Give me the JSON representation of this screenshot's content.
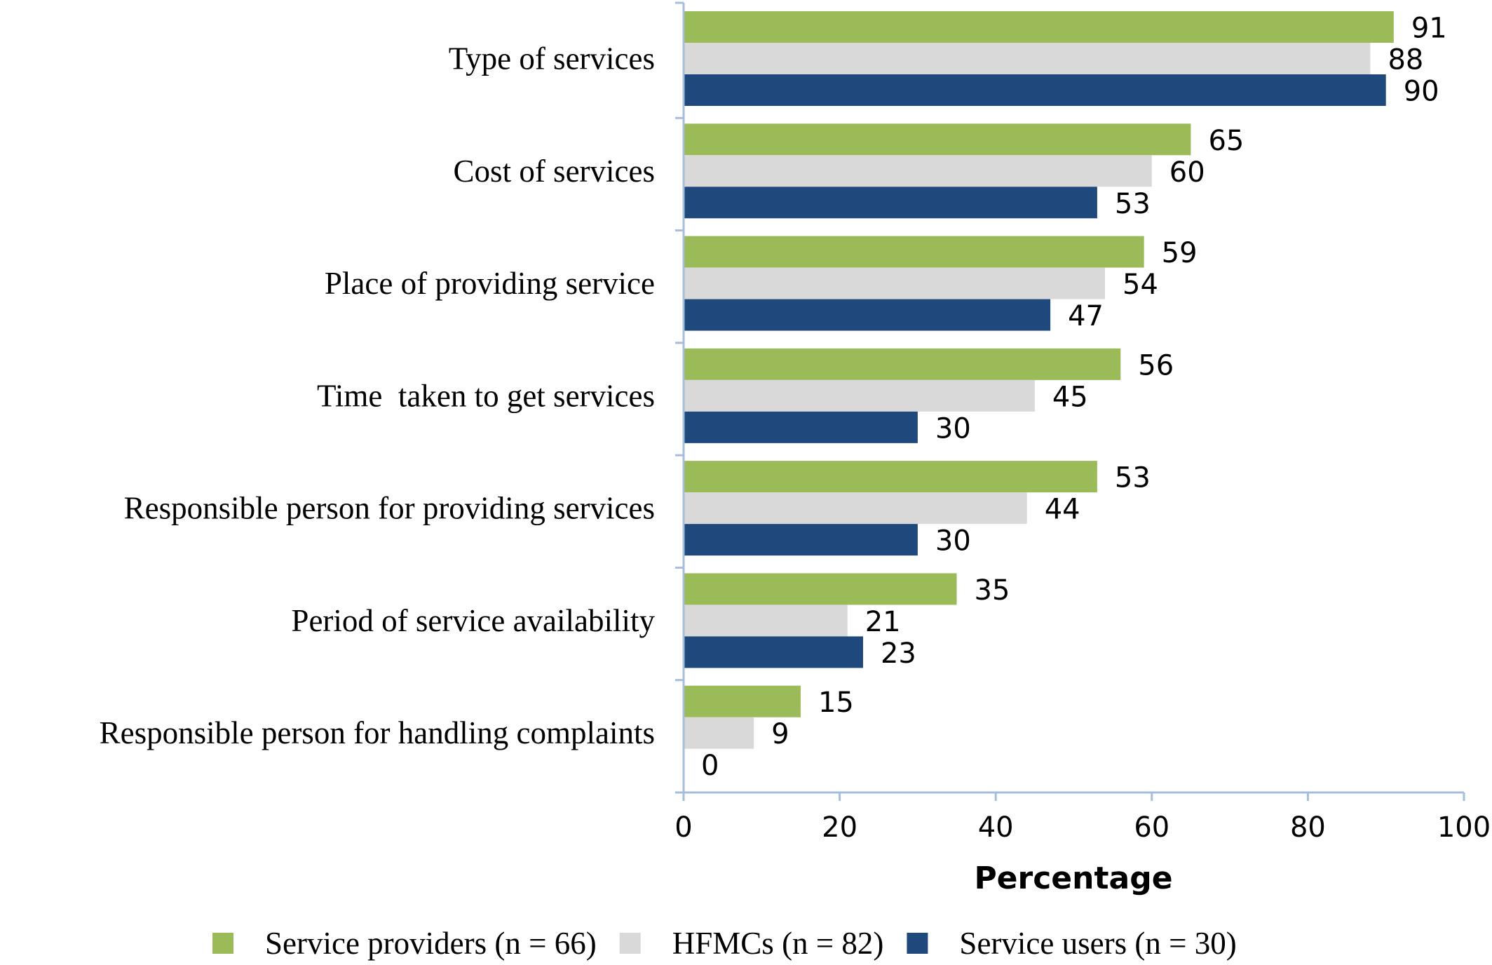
{
  "chart_data": {
    "type": "bar",
    "orientation": "horizontal",
    "title": "",
    "xlabel": "Percentage",
    "ylabel": "",
    "xlim": [
      0,
      100
    ],
    "xticks": [
      0,
      20,
      40,
      60,
      80,
      100
    ],
    "grid": false,
    "legend_position": "bottom",
    "categories": [
      "Type of services",
      "Cost of services",
      "Place of providing service",
      "Time  taken to get services",
      "Responsible person for providing services",
      "Period of service availability",
      "Responsible person for handling complaints"
    ],
    "series": [
      {
        "name": "Service providers (n = 66)",
        "color": "#9BBB59",
        "values": [
          91,
          65,
          59,
          56,
          53,
          35,
          15
        ]
      },
      {
        "name": "HFMCs (n = 82)",
        "color": "#D9D9D9",
        "values": [
          88,
          60,
          54,
          45,
          44,
          21,
          9
        ]
      },
      {
        "name": "Service users (n = 30)",
        "color": "#1F497D",
        "values": [
          90,
          53,
          47,
          30,
          30,
          23,
          0
        ]
      }
    ],
    "axis_color": "#A6BDDB"
  }
}
